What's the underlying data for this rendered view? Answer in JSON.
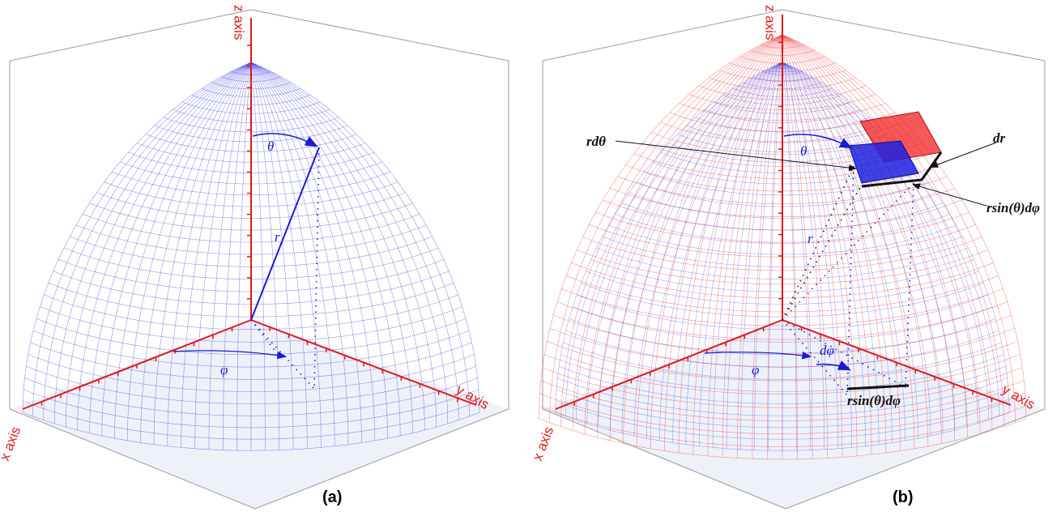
{
  "panels": [
    {
      "id": "a",
      "caption": "(a)",
      "axis_labels": {
        "x": "x axis",
        "y": "y axis",
        "z": "z axis"
      },
      "symbols": {
        "theta": "θ",
        "phi": "φ",
        "r": "r"
      }
    },
    {
      "id": "b",
      "caption": "(b)",
      "axis_labels": {
        "x": "x axis",
        "y": "y axis",
        "z": "z axis"
      },
      "symbols": {
        "theta": "θ",
        "phi": "φ",
        "r": "r",
        "dphi": "dφ",
        "rdtheta": "rdθ",
        "dr": "dr",
        "rsin_dphi_side": "rsin(θ)dφ",
        "rsin_dphi_bottom": "rsin(θ)dφ"
      }
    }
  ],
  "colors": {
    "axis": "#e01818",
    "inner_mesh": "#3c3cf0",
    "outer_mesh": "#f03c3c",
    "angle_arrow": "#1a1ad6",
    "inner_patch": "#2020e0",
    "outer_patch": "#f02020",
    "floor": "#eef1f8"
  }
}
